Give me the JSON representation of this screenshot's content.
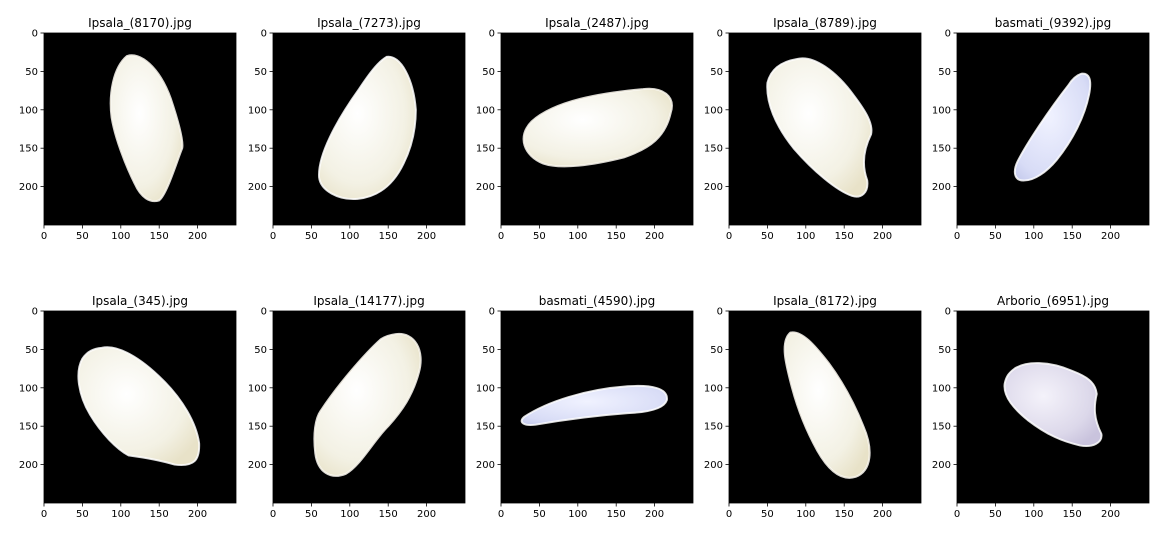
{
  "figure": {
    "panels": [
      {
        "title": "Ipsala_(8170).jpg"
      },
      {
        "title": "Ipsala_(7273).jpg"
      },
      {
        "title": "Ipsala_(2487).jpg"
      },
      {
        "title": "Ipsala_(8789).jpg"
      },
      {
        "title": "basmati_(9392).jpg"
      },
      {
        "title": "Ipsala_(345).jpg"
      },
      {
        "title": "Ipsala_(14177).jpg"
      },
      {
        "title": "basmati_(4590).jpg"
      },
      {
        "title": "Ipsala_(8172).jpg"
      },
      {
        "title": "Arborio_(6951).jpg"
      }
    ],
    "x_ticks": [
      "0",
      "50",
      "100",
      "150",
      "200"
    ],
    "y_ticks": [
      "0",
      "50",
      "100",
      "150",
      "200"
    ],
    "colors": {
      "image_background": "#000000",
      "grain_white": "#f2f1e6",
      "grain_edge": "#fbfaf2",
      "grain_shadow": "#d6c9a2",
      "grain_blue": "#d9dcf5",
      "grain_lavender": "#e7e4f2",
      "text": "#000000"
    }
  }
}
